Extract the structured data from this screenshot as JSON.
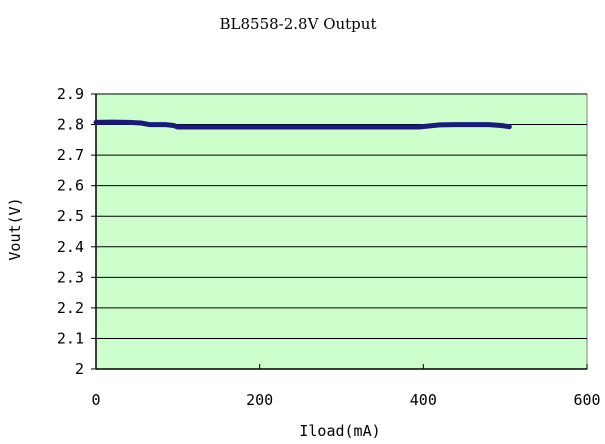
{
  "chart_data": {
    "type": "line",
    "title": "BL8558-2.8V Output",
    "xlabel": "Iload(mA)",
    "ylabel": "Vout(V)",
    "xlim": [
      0,
      600
    ],
    "ylim": [
      2.0,
      2.9
    ],
    "x_ticks": [
      "0",
      "200",
      "400",
      "600"
    ],
    "y_ticks": [
      "2",
      "2.1",
      "2.2",
      "2.3",
      "2.4",
      "2.5",
      "2.6",
      "2.7",
      "2.8",
      "2.9"
    ],
    "grid": "horizontal",
    "legend": "none",
    "colors": {
      "plot_background": "#ccffcc",
      "series_line": "#1a1a7a",
      "gridline": "#000000"
    },
    "series": [
      {
        "x": [
          0,
          20,
          40,
          55,
          65,
          75,
          85,
          95,
          100,
          150,
          200,
          250,
          300,
          350,
          395,
          405,
          420,
          440,
          460,
          480,
          495,
          505
        ],
        "y": [
          2.807,
          2.808,
          2.807,
          2.805,
          2.8,
          2.8,
          2.8,
          2.797,
          2.792,
          2.792,
          2.792,
          2.792,
          2.792,
          2.792,
          2.792,
          2.795,
          2.799,
          2.8,
          2.8,
          2.8,
          2.797,
          2.793
        ]
      }
    ]
  }
}
